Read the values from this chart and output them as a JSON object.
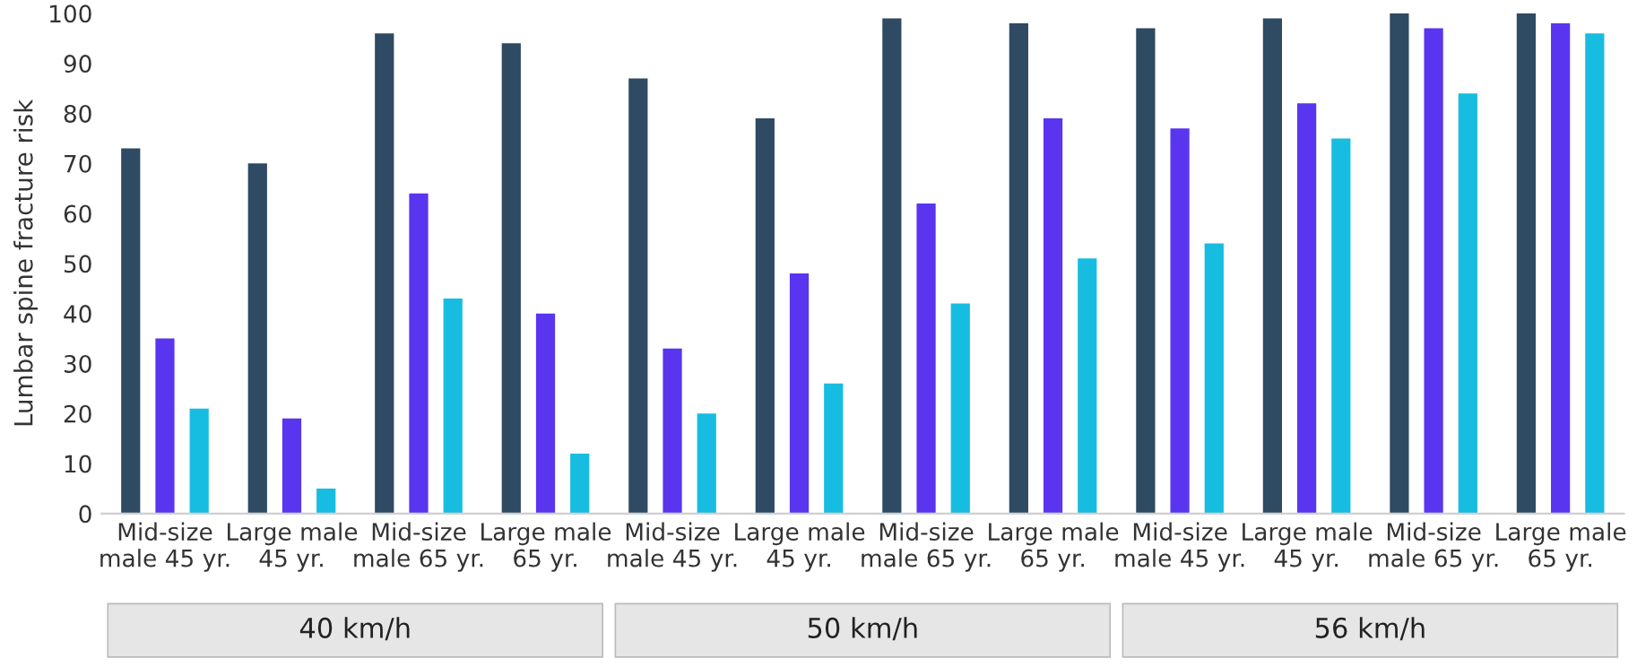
{
  "chart_data": {
    "type": "bar",
    "ylabel": "Lumbar spine fracture risk",
    "categories": [
      "Mid-size\nmale 45 yr.",
      "Large male\n45 yr.",
      "Mid-size\nmale 65 yr.",
      "Large male\n65 yr.",
      "Mid-size\nmale 45 yr.",
      "Large male\n45 yr.",
      "Mid-size\nmale 65 yr.",
      "Large male\n65 yr.",
      "Mid-size\nmale 45 yr.",
      "Large male\n45 yr.",
      "Mid-size\nmale 65 yr.",
      "Large male\n65 yr."
    ],
    "series": [
      {
        "color": "#2f4a63",
        "values": [
          73,
          70,
          96,
          94,
          87,
          79,
          99,
          98,
          97,
          99,
          100,
          100
        ]
      },
      {
        "color": "#5a35f0",
        "values": [
          35,
          19,
          64,
          40,
          33,
          48,
          62,
          79,
          77,
          82,
          97,
          98
        ]
      },
      {
        "color": "#17bde0",
        "values": [
          21,
          5,
          43,
          12,
          20,
          26,
          42,
          51,
          54,
          75,
          84,
          96
        ]
      }
    ],
    "ylim": [
      0,
      100
    ],
    "yticks": [
      0,
      10,
      20,
      30,
      40,
      50,
      60,
      70,
      80,
      90,
      100
    ],
    "grid": false,
    "legend": false,
    "annotations": [
      "40 km/h",
      "50 km/h",
      "56 km/h"
    ]
  }
}
